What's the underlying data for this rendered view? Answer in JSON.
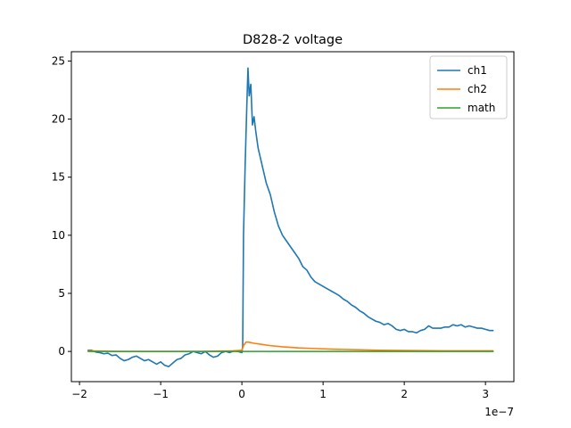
{
  "chart_data": {
    "type": "line",
    "title": "D828-2 voltage",
    "xlabel": "",
    "ylabel": "",
    "x_scale_label": "1e−7",
    "xlim": [
      -2.1,
      3.35
    ],
    "ylim": [
      -2.6,
      25.8
    ],
    "x_ticks": [
      -2,
      -1,
      0,
      1,
      2,
      3
    ],
    "x_tick_labels": [
      "−2",
      "−1",
      "0",
      "1",
      "2",
      "3"
    ],
    "y_ticks": [
      0,
      5,
      10,
      15,
      20,
      25
    ],
    "y_tick_labels": [
      "0",
      "5",
      "10",
      "15",
      "20",
      "25"
    ],
    "grid": false,
    "legend_position": "top-right",
    "series": [
      {
        "name": "ch1",
        "color": "#1f77b4",
        "points": [
          [
            -1.9,
            0.1
          ],
          [
            -1.85,
            0.1
          ],
          [
            -1.8,
            -0.05
          ],
          [
            -1.75,
            -0.1
          ],
          [
            -1.7,
            -0.2
          ],
          [
            -1.65,
            -0.15
          ],
          [
            -1.6,
            -0.35
          ],
          [
            -1.55,
            -0.3
          ],
          [
            -1.5,
            -0.6
          ],
          [
            -1.45,
            -0.8
          ],
          [
            -1.4,
            -0.7
          ],
          [
            -1.35,
            -0.5
          ],
          [
            -1.3,
            -0.4
          ],
          [
            -1.25,
            -0.6
          ],
          [
            -1.2,
            -0.8
          ],
          [
            -1.15,
            -0.7
          ],
          [
            -1.1,
            -0.9
          ],
          [
            -1.05,
            -1.1
          ],
          [
            -1.0,
            -0.9
          ],
          [
            -0.95,
            -1.2
          ],
          [
            -0.9,
            -1.3
          ],
          [
            -0.85,
            -1.0
          ],
          [
            -0.8,
            -0.7
          ],
          [
            -0.75,
            -0.6
          ],
          [
            -0.7,
            -0.3
          ],
          [
            -0.65,
            -0.2
          ],
          [
            -0.6,
            0.0
          ],
          [
            -0.55,
            -0.1
          ],
          [
            -0.5,
            -0.2
          ],
          [
            -0.45,
            0.0
          ],
          [
            -0.4,
            -0.3
          ],
          [
            -0.35,
            -0.5
          ],
          [
            -0.3,
            -0.4
          ],
          [
            -0.25,
            -0.1
          ],
          [
            -0.2,
            0.0
          ],
          [
            -0.15,
            -0.1
          ],
          [
            -0.1,
            0.05
          ],
          [
            -0.05,
            0.0
          ],
          [
            0.0,
            -0.1
          ],
          [
            0.01,
            0.5
          ],
          [
            0.02,
            10.0
          ],
          [
            0.04,
            16.0
          ],
          [
            0.06,
            21.0
          ],
          [
            0.075,
            24.4
          ],
          [
            0.09,
            22.0
          ],
          [
            0.11,
            23.0
          ],
          [
            0.13,
            19.5
          ],
          [
            0.15,
            20.2
          ],
          [
            0.17,
            19.0
          ],
          [
            0.2,
            17.5
          ],
          [
            0.25,
            16.0
          ],
          [
            0.3,
            14.5
          ],
          [
            0.35,
            13.5
          ],
          [
            0.4,
            12.0
          ],
          [
            0.45,
            10.8
          ],
          [
            0.5,
            10.0
          ],
          [
            0.55,
            9.5
          ],
          [
            0.6,
            9.0
          ],
          [
            0.65,
            8.5
          ],
          [
            0.7,
            8.0
          ],
          [
            0.75,
            7.3
          ],
          [
            0.8,
            7.0
          ],
          [
            0.85,
            6.4
          ],
          [
            0.9,
            6.0
          ],
          [
            0.95,
            5.8
          ],
          [
            1.0,
            5.6
          ],
          [
            1.05,
            5.4
          ],
          [
            1.1,
            5.2
          ],
          [
            1.15,
            5.0
          ],
          [
            1.2,
            4.8
          ],
          [
            1.25,
            4.5
          ],
          [
            1.3,
            4.3
          ],
          [
            1.35,
            4.0
          ],
          [
            1.4,
            3.8
          ],
          [
            1.45,
            3.5
          ],
          [
            1.5,
            3.3
          ],
          [
            1.55,
            3.0
          ],
          [
            1.6,
            2.8
          ],
          [
            1.65,
            2.6
          ],
          [
            1.7,
            2.5
          ],
          [
            1.75,
            2.3
          ],
          [
            1.8,
            2.4
          ],
          [
            1.85,
            2.2
          ],
          [
            1.9,
            1.9
          ],
          [
            1.95,
            1.8
          ],
          [
            2.0,
            1.9
          ],
          [
            2.05,
            1.7
          ],
          [
            2.1,
            1.7
          ],
          [
            2.15,
            1.6
          ],
          [
            2.2,
            1.8
          ],
          [
            2.25,
            1.9
          ],
          [
            2.3,
            2.2
          ],
          [
            2.35,
            2.0
          ],
          [
            2.4,
            2.0
          ],
          [
            2.45,
            2.0
          ],
          [
            2.5,
            2.1
          ],
          [
            2.55,
            2.1
          ],
          [
            2.6,
            2.3
          ],
          [
            2.65,
            2.2
          ],
          [
            2.7,
            2.3
          ],
          [
            2.75,
            2.1
          ],
          [
            2.8,
            2.2
          ],
          [
            2.85,
            2.1
          ],
          [
            2.9,
            2.0
          ],
          [
            2.95,
            2.0
          ],
          [
            3.0,
            1.9
          ],
          [
            3.05,
            1.8
          ],
          [
            3.1,
            1.8
          ]
        ]
      },
      {
        "name": "ch2",
        "color": "#ff7f0e",
        "points": [
          [
            -1.9,
            0.05
          ],
          [
            -1.5,
            0.0
          ],
          [
            -1.0,
            0.0
          ],
          [
            -0.5,
            0.0
          ],
          [
            -0.1,
            0.05
          ],
          [
            0.0,
            0.1
          ],
          [
            0.02,
            0.5
          ],
          [
            0.05,
            0.8
          ],
          [
            0.08,
            0.8
          ],
          [
            0.15,
            0.7
          ],
          [
            0.25,
            0.6
          ],
          [
            0.35,
            0.5
          ],
          [
            0.5,
            0.4
          ],
          [
            0.7,
            0.3
          ],
          [
            0.9,
            0.25
          ],
          [
            1.1,
            0.2
          ],
          [
            1.4,
            0.15
          ],
          [
            1.7,
            0.1
          ],
          [
            2.0,
            0.08
          ],
          [
            2.5,
            0.05
          ],
          [
            3.1,
            0.05
          ]
        ]
      },
      {
        "name": "math",
        "color": "#2ca02c",
        "points": [
          [
            -1.9,
            0.0
          ],
          [
            3.1,
            0.0
          ]
        ]
      }
    ]
  }
}
